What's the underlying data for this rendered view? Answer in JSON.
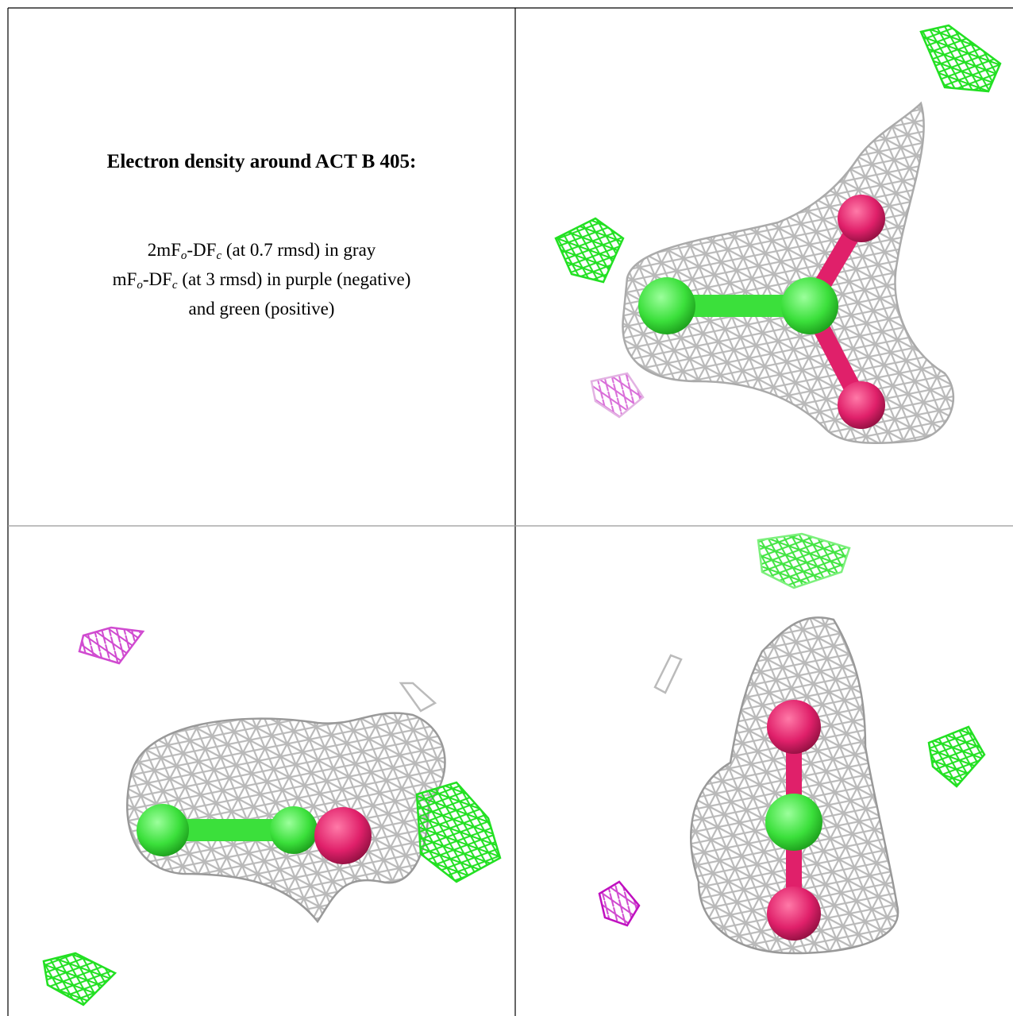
{
  "caption": {
    "title": "Electron density around ACT B 405:",
    "lines": [
      [
        {
          "text": "2mF"
        },
        {
          "text": "o",
          "sub": true
        },
        {
          "text": "-DF"
        },
        {
          "text": "c",
          "sub": true
        },
        {
          "text": " (at 0.7 rmsd) in gray"
        }
      ],
      [
        {
          "text": "mF"
        },
        {
          "text": "o",
          "sub": true
        },
        {
          "text": "-DF"
        },
        {
          "text": "c",
          "sub": true
        },
        {
          "text": " (at 3 rmsd) in purple (negative)"
        }
      ],
      [
        {
          "text": "and green (positive)"
        }
      ]
    ]
  }
}
